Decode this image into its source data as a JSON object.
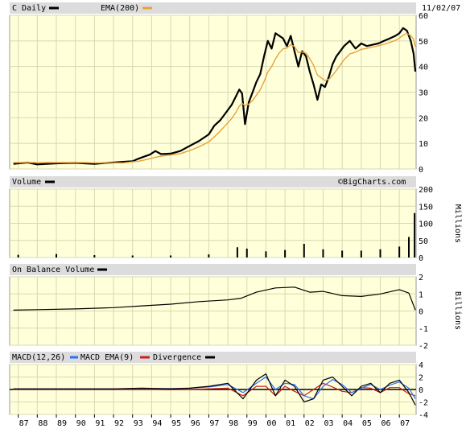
{
  "colors": {
    "plot_bg": "#ffffd9",
    "header_bg": "#dcdcdc",
    "grid": "#d8d8b0",
    "price": "#000000",
    "ema": "#e8a23c",
    "macd_ema": "#2b6fff",
    "divergence": "#cc2020"
  },
  "date": "11/02/07",
  "watermark": "©BigCharts.com",
  "chart_data": [
    {
      "id": "price",
      "type": "line",
      "legend": [
        {
          "name": "C Daily",
          "color": "#000000"
        },
        {
          "name": "EMA(200)",
          "color": "#e8a23c"
        }
      ],
      "yticks": [
        "0",
        "10",
        "20",
        "30",
        "40",
        "50",
        "60"
      ],
      "ylim": [
        0,
        60
      ],
      "x": [
        1986.75,
        1987.0,
        1987.5,
        1988.0,
        1988.5,
        1989.0,
        1989.5,
        1990.0,
        1990.5,
        1991.0,
        1991.5,
        1992.0,
        1992.5,
        1993.0,
        1993.3,
        1993.6,
        1993.9,
        1994.2,
        1994.5,
        1995.0,
        1995.5,
        1996.0,
        1996.5,
        1997.0,
        1997.3,
        1997.6,
        1997.9,
        1998.2,
        1998.4,
        1998.6,
        1998.75,
        1998.9,
        1999.1,
        1999.3,
        1999.5,
        1999.7,
        1999.9,
        2000.1,
        2000.3,
        2000.5,
        2000.7,
        2000.9,
        2001.1,
        2001.3,
        2001.5,
        2001.7,
        2001.9,
        2002.1,
        2002.3,
        2002.5,
        2002.7,
        2002.9,
        2003.1,
        2003.3,
        2003.5,
        2003.7,
        2003.9,
        2004.1,
        2004.4,
        2004.7,
        2005.0,
        2005.3,
        2005.6,
        2005.9,
        2006.2,
        2006.5,
        2006.8,
        2007.0,
        2007.2,
        2007.4,
        2007.6,
        2007.75,
        2007.84
      ],
      "series": [
        {
          "values": [
            2.0,
            2.2,
            2.5,
            1.8,
            2.0,
            2.2,
            2.3,
            2.4,
            2.2,
            2.0,
            2.3,
            2.5,
            2.8,
            3.0,
            4.0,
            4.8,
            5.6,
            7.0,
            5.8,
            6.0,
            7.0,
            9.0,
            11.0,
            13.5,
            17.0,
            19.0,
            22.0,
            25.0,
            28.0,
            31.0,
            29.5,
            17.5,
            26.0,
            30.0,
            34.0,
            37.0,
            44.0,
            50.0,
            47.0,
            53.0,
            52.0,
            51.0,
            48.0,
            52.0,
            46.0,
            40.0,
            46.0,
            44.0,
            38.0,
            33.0,
            27.0,
            33.0,
            32.0,
            36.0,
            41.0,
            44.0,
            46.0,
            48.0,
            50.0,
            47.0,
            49.0,
            48.0,
            48.5,
            49.0,
            50.0,
            51.0,
            52.0,
            53.0,
            55.0,
            54.0,
            50.0,
            45.0,
            38.0
          ]
        },
        {
          "values": [
            2.5,
            2.5,
            2.5,
            2.5,
            2.5,
            2.5,
            2.5,
            2.5,
            2.5,
            2.4,
            2.4,
            2.4,
            2.4,
            2.8,
            3.0,
            3.5,
            4.0,
            4.6,
            5.0,
            5.5,
            6.0,
            7.2,
            8.7,
            10.6,
            12.6,
            14.8,
            17.2,
            19.7,
            21.9,
            24.5,
            25.6,
            24.8,
            25.3,
            26.8,
            28.8,
            30.9,
            34.1,
            37.9,
            40.0,
            43.0,
            45.3,
            46.9,
            47.2,
            48.5,
            47.8,
            45.5,
            45.7,
            45.2,
            43.1,
            40.5,
            36.7,
            35.6,
            34.6,
            35.0,
            36.6,
            38.5,
            40.6,
            42.7,
            44.9,
            45.6,
            46.7,
            47.1,
            47.6,
            48.1,
            48.7,
            49.4,
            50.2,
            51.1,
            52.3,
            52.9,
            52.1,
            50.6,
            47.7
          ]
        }
      ]
    },
    {
      "id": "volume",
      "type": "bar",
      "legend": [
        {
          "name": "Volume",
          "color": "#000000"
        }
      ],
      "yticks": [
        "0",
        "50",
        "100",
        "150",
        "200"
      ],
      "ylabel": "Millions",
      "ylim": [
        0,
        200
      ],
      "x": [
        1987,
        1989,
        1991,
        1993,
        1995,
        1997,
        1998.5,
        1999,
        2000,
        2001,
        2002,
        2003,
        2004,
        2005,
        2006,
        2007,
        2007.5,
        2007.8
      ],
      "values": [
        8,
        10,
        7,
        6,
        6,
        9,
        30,
        26,
        18,
        22,
        40,
        24,
        20,
        20,
        24,
        32,
        60,
        130
      ]
    },
    {
      "id": "obv",
      "type": "line",
      "legend": [
        {
          "name": "On Balance Volume",
          "color": "#000000"
        }
      ],
      "yticks": [
        "-2",
        "-1",
        "0",
        "1",
        "2"
      ],
      "ylabel": "Billions",
      "ylim": [
        -2,
        2
      ],
      "x": [
        1986.75,
        1988,
        1990,
        1992,
        1993.5,
        1995,
        1996.5,
        1998,
        1998.7,
        1999.5,
        2000.5,
        2001.5,
        2002.3,
        2003,
        2004,
        2005,
        2006,
        2007,
        2007.5,
        2007.84
      ],
      "values": [
        0.05,
        0.08,
        0.12,
        0.2,
        0.3,
        0.4,
        0.55,
        0.65,
        0.75,
        1.1,
        1.35,
        1.4,
        1.1,
        1.15,
        0.9,
        0.85,
        1.0,
        1.25,
        1.05,
        0.05
      ]
    },
    {
      "id": "macd",
      "type": "line",
      "legend": [
        {
          "name": "MACD(12,26)",
          "color": "#000000"
        },
        {
          "name": "MACD EMA(9)",
          "color": "#2b6fff"
        },
        {
          "name": "Divergence",
          "color": "#cc2020"
        }
      ],
      "yticks": [
        "-4",
        "-2",
        "0",
        "2",
        "4"
      ],
      "ylim": [
        -4,
        4
      ],
      "x": [
        1986.75,
        1988,
        1990,
        1992,
        1993.5,
        1995,
        1996,
        1997,
        1998,
        1998.8,
        1999.5,
        2000,
        2000.5,
        2001,
        2001.5,
        2002,
        2002.5,
        2003,
        2003.5,
        2004,
        2004.5,
        2005,
        2005.5,
        2006,
        2006.5,
        2007,
        2007.5,
        2007.84
      ],
      "series": [
        {
          "values": [
            0.1,
            0.1,
            0.1,
            0.1,
            0.2,
            0.1,
            0.2,
            0.5,
            1.0,
            -1.5,
            1.5,
            2.5,
            -1.0,
            1.5,
            0.5,
            -2.0,
            -1.5,
            1.5,
            2.0,
            0.5,
            -1.0,
            0.5,
            1.0,
            -0.5,
            1.0,
            1.5,
            -0.5,
            -2.5
          ]
        },
        {
          "values": [
            0.1,
            0.1,
            0.1,
            0.1,
            0.15,
            0.15,
            0.2,
            0.4,
            0.8,
            -0.5,
            1.0,
            2.0,
            0.0,
            1.0,
            0.8,
            -1.0,
            -1.5,
            0.5,
            1.6,
            0.8,
            -0.5,
            0.2,
            0.8,
            0.0,
            0.7,
            1.2,
            0.2,
            -1.5
          ]
        },
        {
          "values": [
            0.0,
            0.0,
            0.0,
            0.0,
            0.05,
            -0.05,
            0.0,
            0.1,
            0.2,
            -1.0,
            0.5,
            0.5,
            -1.0,
            0.5,
            -0.3,
            -1.0,
            0.0,
            1.0,
            0.4,
            -0.3,
            -0.5,
            0.3,
            0.2,
            -0.5,
            0.3,
            0.3,
            -0.7,
            -1.0
          ]
        }
      ]
    }
  ],
  "xaxis": {
    "labels": [
      "87",
      "88",
      "89",
      "90",
      "91",
      "92",
      "93",
      "94",
      "95",
      "96",
      "97",
      "98",
      "99",
      "00",
      "01",
      "02",
      "03",
      "04",
      "05",
      "06",
      "07"
    ],
    "years": [
      1987,
      1988,
      1989,
      1990,
      1991,
      1992,
      1993,
      1994,
      1995,
      1996,
      1997,
      1998,
      1999,
      2000,
      2001,
      2002,
      2003,
      2004,
      2005,
      2006,
      2007
    ]
  }
}
